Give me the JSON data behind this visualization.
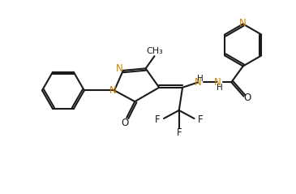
{
  "bg_color": "#ffffff",
  "line_color": "#1a1a1a",
  "n_color": "#cc8800",
  "o_color": "#1a1a1a",
  "lw": 1.5,
  "figsize": [
    3.65,
    2.39
  ],
  "dpi": 100,
  "xlim": [
    0,
    10
  ],
  "ylim": [
    0,
    6.55
  ]
}
